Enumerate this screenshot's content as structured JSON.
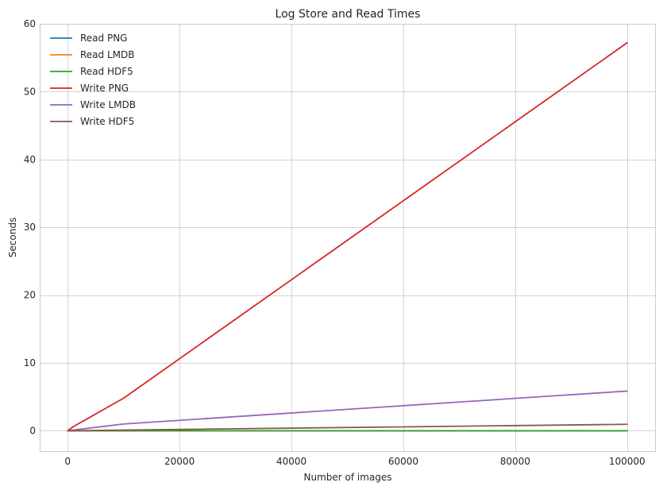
{
  "chart_data": {
    "type": "line",
    "title": "Log Store and Read Times",
    "xlabel": "Number of images",
    "ylabel": "Seconds",
    "xlim": [
      -5000,
      105000
    ],
    "ylim": [
      -3,
      60
    ],
    "xticks": [
      0,
      20000,
      40000,
      60000,
      80000,
      100000
    ],
    "yticks": [
      0,
      10,
      20,
      30,
      40,
      50,
      60
    ],
    "grid": true,
    "legend_position": "top-left",
    "x": [
      10,
      100,
      1000,
      10000,
      100000
    ],
    "series": [
      {
        "name": "Read PNG",
        "color": "#1f77b4",
        "values": [
          0.0,
          0.0,
          0.0,
          0.0,
          0.0
        ]
      },
      {
        "name": "Read LMDB",
        "color": "#ff7f0e",
        "values": [
          0.0,
          0.0,
          0.0,
          0.0,
          0.0
        ]
      },
      {
        "name": "Read HDF5",
        "color": "#2ca02c",
        "values": [
          0.0,
          0.0,
          0.0,
          0.0,
          0.0
        ]
      },
      {
        "name": "Write PNG",
        "color": "#d62728",
        "values": [
          0.01,
          0.06,
          0.6,
          4.8,
          57.2
        ]
      },
      {
        "name": "Write LMDB",
        "color": "#9467bd",
        "values": [
          0.0,
          0.01,
          0.1,
          1.0,
          5.85
        ]
      },
      {
        "name": "Write HDF5",
        "color": "#8c564b",
        "values": [
          0.0,
          0.0,
          0.01,
          0.1,
          0.95
        ]
      }
    ]
  }
}
